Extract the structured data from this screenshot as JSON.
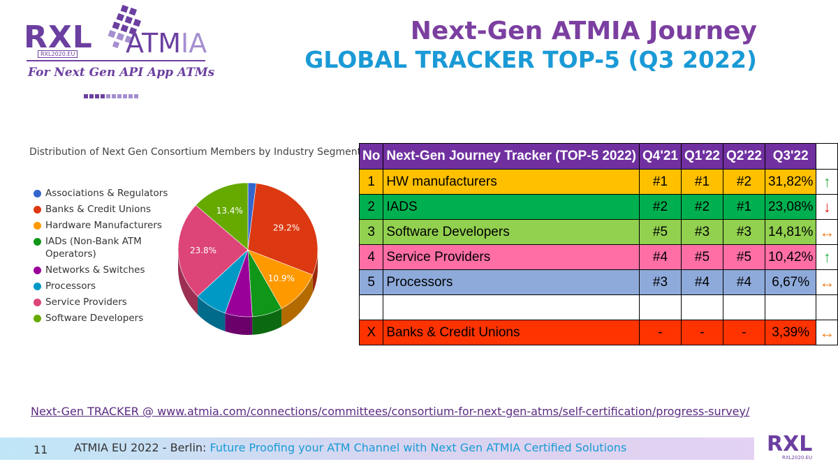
{
  "logo": {
    "rxl": "RXL",
    "atm": "ATM",
    "ia": "IA",
    "sub": "RXL2020.EU",
    "tagline": "For Next Gen API App ATMs"
  },
  "title": {
    "line1": "Next-Gen ATMIA Journey",
    "line2": "GLOBAL TRACKER TOP-5 (Q3 2022)"
  },
  "chart_data": {
    "type": "pie",
    "title": "Distribution of Next Gen Consortium Members by Industry Segment",
    "categories": [
      "Associations & Regulators",
      "Banks & Credit Unions",
      "Hardware Manufacturers",
      "IADs (Non-Bank ATM Operators)",
      "Networks & Switches",
      "Processors",
      "Service Providers",
      "Software Developers"
    ],
    "values": [
      1.9,
      29.2,
      10.9,
      7.0,
      6.3,
      7.5,
      23.8,
      13.4
    ],
    "labels": [
      "",
      "29.2%",
      "10.9%",
      "",
      "",
      "",
      "23.8%",
      "13.4%"
    ],
    "colors": [
      "#3366cc",
      "#dc3912",
      "#ff9900",
      "#109618",
      "#990099",
      "#0099c6",
      "#dd4477",
      "#66aa00"
    ]
  },
  "table": {
    "headers": [
      "No",
      "Next-Gen Journey Tracker (TOP-5 2022)",
      "Q4'21",
      "Q1'22",
      "Q2'22",
      "Q3'22",
      ""
    ],
    "rows": [
      {
        "no": "1",
        "name": "HW manufacturers",
        "q4": "#1",
        "q1": "#1",
        "q2": "#2",
        "q3": "31,82%",
        "arrow": "↑"
      },
      {
        "no": "2",
        "name": "IADS",
        "q4": "#2",
        "q1": "#2",
        "q2": "#1",
        "q3": "23,08%",
        "arrow": "↓"
      },
      {
        "no": "3",
        "name": "Software Developers",
        "q4": "#5",
        "q1": "#3",
        "q2": "#3",
        "q3": "14,81%",
        "arrow": "↔"
      },
      {
        "no": "4",
        "name": "Service Providers",
        "q4": "#4",
        "q1": "#5",
        "q2": "#5",
        "q3": "10,42%",
        "arrow": "↑"
      },
      {
        "no": "5",
        "name": "Processors",
        "q4": "#3",
        "q1": "#4",
        "q2": "#4",
        "q3": "6,67%",
        "arrow": "↔"
      },
      {
        "no": "",
        "name": "",
        "q4": "",
        "q1": "",
        "q2": "",
        "q3": "",
        "arrow": ""
      },
      {
        "no": "X",
        "name": "Banks & Credit Unions",
        "q4": "-",
        "q1": "-",
        "q2": "-",
        "q3": "3,39%",
        "arrow": "↔"
      }
    ]
  },
  "link": {
    "text": "Next-Gen TRACKER @  www.atmia.com/connections/committees/consortium-for-next-gen-atms/self-certification/progress-survey/"
  },
  "footer": {
    "page_number": "11",
    "text_prefix": "ATMIA EU 2022 - Berlin: ",
    "text_highlight": "Future  Proofing your ATM Channel with Next Gen ATMIA Certified Solutions",
    "logo_text": "RXL",
    "logo_sub": "RXL2020.EU"
  }
}
